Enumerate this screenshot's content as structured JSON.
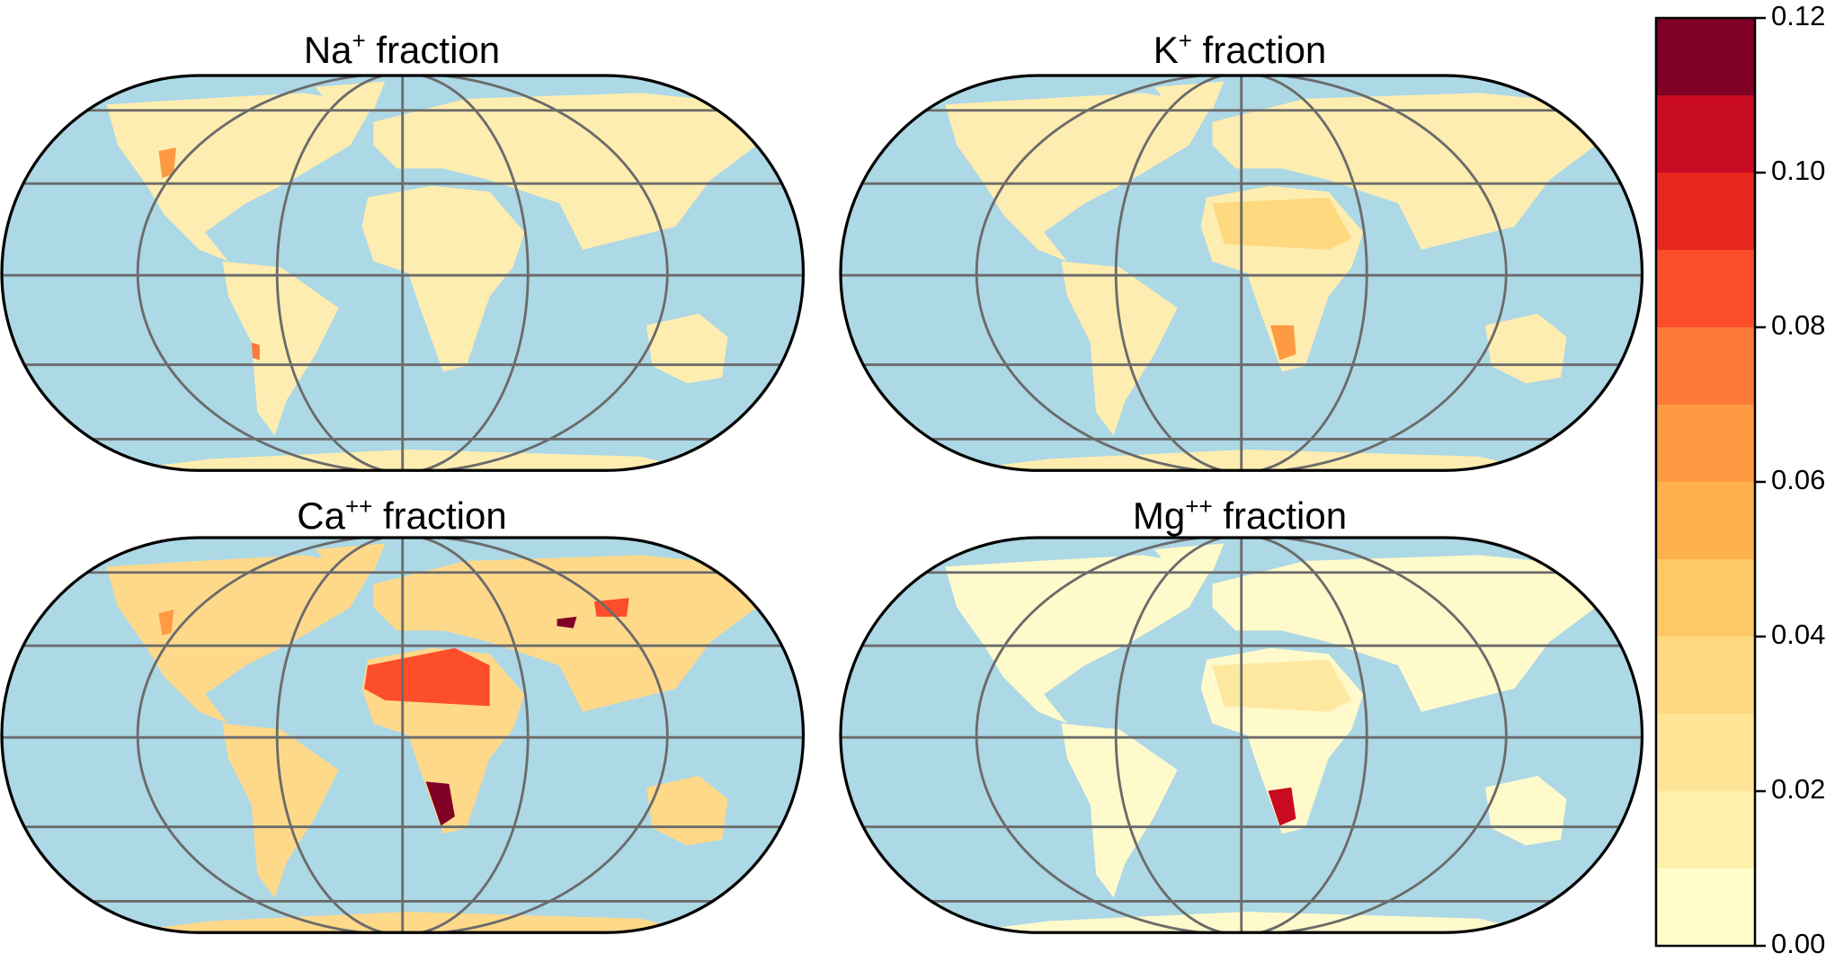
{
  "panels": [
    {
      "title": {
        "base": "Na",
        "sup": "+",
        "rest": " fraction"
      }
    },
    {
      "title": {
        "base": "K",
        "sup": "+",
        "rest": " fraction"
      }
    },
    {
      "title": {
        "base": "Ca",
        "sup": "++",
        "rest": " fraction"
      }
    },
    {
      "title": {
        "base": "Mg",
        "sup": "++",
        "rest": " fraction"
      }
    }
  ],
  "colorbar": {
    "bins": [
      0,
      0.01,
      0.02,
      0.03,
      0.04,
      0.05,
      0.06,
      0.07,
      0.08,
      0.09,
      0.1,
      0.11,
      0.12
    ],
    "colors": [
      "#ffffcc",
      "#fff0ad",
      "#ffe595",
      "#fed97f",
      "#fec965",
      "#feb24c",
      "#fd9a42",
      "#fd7a36",
      "#fc4e2a",
      "#e8281f",
      "#c90a23",
      "#800026"
    ],
    "ticks": [
      {
        "value": 0,
        "label": "0.00"
      },
      {
        "value": 0.02,
        "label": "0.02"
      },
      {
        "value": 0.04,
        "label": "0.04"
      },
      {
        "value": 0.06,
        "label": "0.06"
      },
      {
        "value": 0.08,
        "label": "0.08"
      },
      {
        "value": 0.1,
        "label": "0.10"
      },
      {
        "value": 0.12,
        "label": "0.12"
      }
    ]
  }
}
